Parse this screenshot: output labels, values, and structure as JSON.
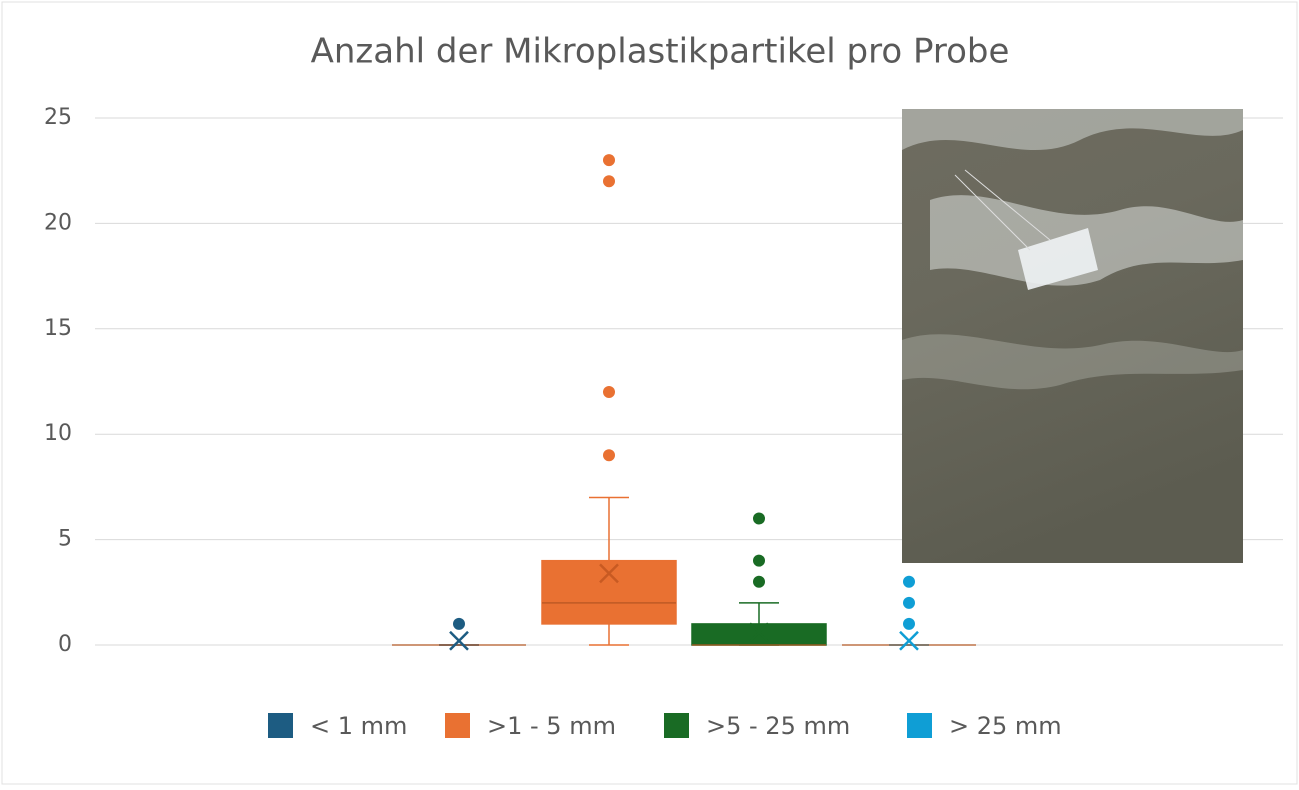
{
  "chart_data": {
    "type": "box",
    "title": "Anzahl der Mikroplastikpartikel pro Probe",
    "ylim": [
      0,
      25
    ],
    "yticks": [
      0,
      5,
      10,
      15,
      20,
      25
    ],
    "grid": true,
    "legend": "bottom",
    "series": [
      {
        "name": "< 1 mm",
        "color": "#1d5c82",
        "min": 0,
        "q1": 0,
        "median": 0,
        "q3": 0,
        "max": 0,
        "mean": 0.2,
        "outliers": [
          1
        ]
      },
      {
        "name": ">1 - 5 mm",
        "color": "#e97132",
        "min": 0,
        "q1": 1,
        "median": 2,
        "q3": 4,
        "max": 7,
        "mean": 3.4,
        "outliers": [
          9,
          12,
          22,
          23
        ]
      },
      {
        "name": ">5 - 25 mm",
        "color": "#196b24",
        "min": 0,
        "q1": 0,
        "median": 0,
        "q3": 1,
        "max": 2,
        "mean": 0.6,
        "outliers": [
          3,
          4,
          6
        ]
      },
      {
        "name": "> 25 mm",
        "color": "#0f9ed5",
        "min": 0,
        "q1": 0,
        "median": 0,
        "q3": 0,
        "max": 0,
        "mean": 0.2,
        "outliers": [
          1,
          2,
          3
        ]
      }
    ]
  }
}
